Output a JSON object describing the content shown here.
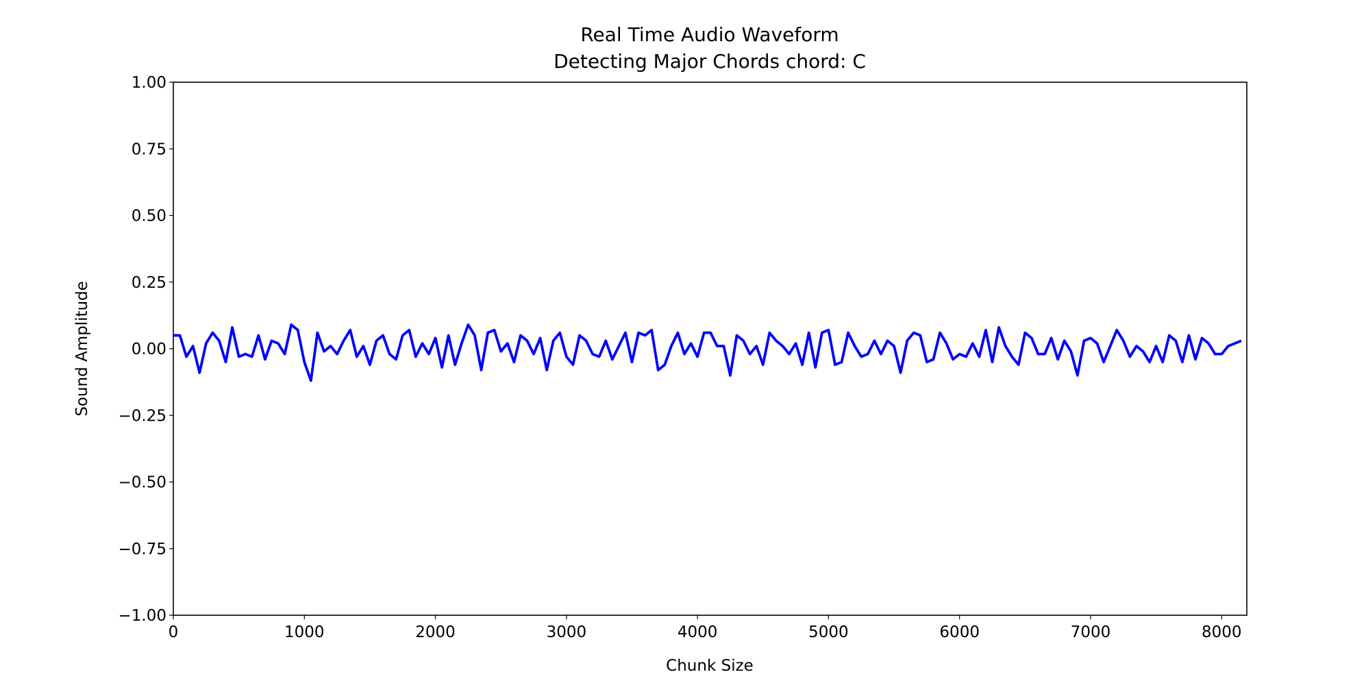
{
  "chart_data": {
    "type": "line",
    "title": "Real Time Audio Waveform",
    "subtitle": "Detecting Major Chords chord: C",
    "x_label": "Chunk Size",
    "y_label": "Sound Amplitude",
    "color": "#0000ff",
    "grid": false,
    "xlim": [
      0,
      8192
    ],
    "ylim": [
      -1,
      1
    ],
    "xticks": [
      0,
      1000,
      2000,
      3000,
      4000,
      5000,
      6000,
      7000,
      8000
    ],
    "yticks": [
      {
        "value": -1,
        "label": "−1.00"
      },
      {
        "value": -0.75,
        "label": "−0.75"
      },
      {
        "value": -0.5,
        "label": "−0.50"
      },
      {
        "value": -0.25,
        "label": "−0.25"
      },
      {
        "value": 0,
        "label": "0.00"
      },
      {
        "value": 0.25,
        "label": "0.25"
      },
      {
        "value": 0.5,
        "label": "0.50"
      },
      {
        "value": 0.75,
        "label": "0.75"
      },
      {
        "value": 1,
        "label": "1.00"
      }
    ],
    "x": [
      0,
      50,
      100,
      150,
      200,
      250,
      300,
      350,
      400,
      450,
      500,
      550,
      600,
      650,
      700,
      750,
      800,
      850,
      900,
      950,
      1000,
      1050,
      1100,
      1150,
      1200,
      1250,
      1300,
      1350,
      1400,
      1450,
      1500,
      1550,
      1600,
      1650,
      1700,
      1750,
      1800,
      1850,
      1900,
      1950,
      2000,
      2050,
      2100,
      2150,
      2200,
      2250,
      2300,
      2350,
      2400,
      2450,
      2500,
      2550,
      2600,
      2650,
      2700,
      2750,
      2800,
      2850,
      2900,
      2950,
      3000,
      3050,
      3100,
      3150,
      3200,
      3250,
      3300,
      3350,
      3400,
      3450,
      3500,
      3550,
      3600,
      3650,
      3700,
      3750,
      3800,
      3850,
      3900,
      3950,
      4000,
      4050,
      4100,
      4150,
      4200,
      4250,
      4300,
      4350,
      4400,
      4450,
      4500,
      4550,
      4600,
      4650,
      4700,
      4750,
      4800,
      4850,
      4900,
      4950,
      5000,
      5050,
      5100,
      5150,
      5200,
      5250,
      5300,
      5350,
      5400,
      5450,
      5500,
      5550,
      5600,
      5650,
      5700,
      5750,
      5800,
      5850,
      5900,
      5950,
      6000,
      6050,
      6100,
      6150,
      6200,
      6250,
      6300,
      6350,
      6400,
      6450,
      6500,
      6550,
      6600,
      6650,
      6700,
      6750,
      6800,
      6850,
      6900,
      6950,
      7000,
      7050,
      7100,
      7150,
      7200,
      7250,
      7300,
      7350,
      7400,
      7450,
      7500,
      7550,
      7600,
      7650,
      7700,
      7750,
      7800,
      7850,
      7900,
      7950,
      8000,
      8050,
      8100,
      8150
    ],
    "values": [
      0.05,
      0.05,
      -0.03,
      0.01,
      -0.09,
      0.02,
      0.06,
      0.03,
      -0.05,
      0.08,
      -0.03,
      -0.02,
      -0.03,
      0.05,
      -0.04,
      0.03,
      0.02,
      -0.02,
      0.09,
      0.07,
      -0.05,
      -0.12,
      0.06,
      -0.01,
      0.01,
      -0.02,
      0.03,
      0.07,
      -0.03,
      0.01,
      -0.06,
      0.03,
      0.05,
      -0.02,
      -0.04,
      0.05,
      0.07,
      -0.03,
      0.02,
      -0.02,
      0.04,
      -0.07,
      0.05,
      -0.06,
      0.02,
      0.09,
      0.05,
      -0.08,
      0.06,
      0.07,
      -0.01,
      0.02,
      -0.05,
      0.05,
      0.03,
      -0.02,
      0.04,
      -0.08,
      0.03,
      0.06,
      -0.03,
      -0.06,
      0.05,
      0.03,
      -0.02,
      -0.03,
      0.03,
      -0.04,
      0.01,
      0.06,
      -0.05,
      0.06,
      0.05,
      0.07,
      -0.08,
      -0.06,
      0.01,
      0.06,
      -0.02,
      0.02,
      -0.03,
      0.06,
      0.06,
      0.01,
      0.01,
      -0.1,
      0.05,
      0.03,
      -0.02,
      0.01,
      -0.06,
      0.06,
      0.03,
      0.01,
      -0.02,
      0.02,
      -0.06,
      0.06,
      -0.07,
      0.06,
      0.07,
      -0.06,
      -0.05,
      0.06,
      0.01,
      -0.03,
      -0.02,
      0.03,
      -0.02,
      0.03,
      0.01,
      -0.09,
      0.03,
      0.06,
      0.05,
      -0.05,
      -0.04,
      0.06,
      0.02,
      -0.04,
      -0.02,
      -0.03,
      0.02,
      -0.03,
      0.07,
      -0.05,
      0.08,
      0.01,
      -0.03,
      -0.06,
      0.06,
      0.04,
      -0.02,
      -0.02,
      0.04,
      -0.04,
      0.03,
      -0.01,
      -0.1,
      0.03,
      0.04,
      0.02,
      -0.05,
      0.01,
      0.07,
      0.03,
      -0.03,
      0.01,
      -0.01,
      -0.05,
      0.01,
      -0.05,
      0.05,
      0.03,
      -0.05,
      0.05,
      -0.04,
      0.04,
      0.02,
      -0.02,
      -0.02,
      0.01,
      0.02,
      0.03
    ]
  }
}
